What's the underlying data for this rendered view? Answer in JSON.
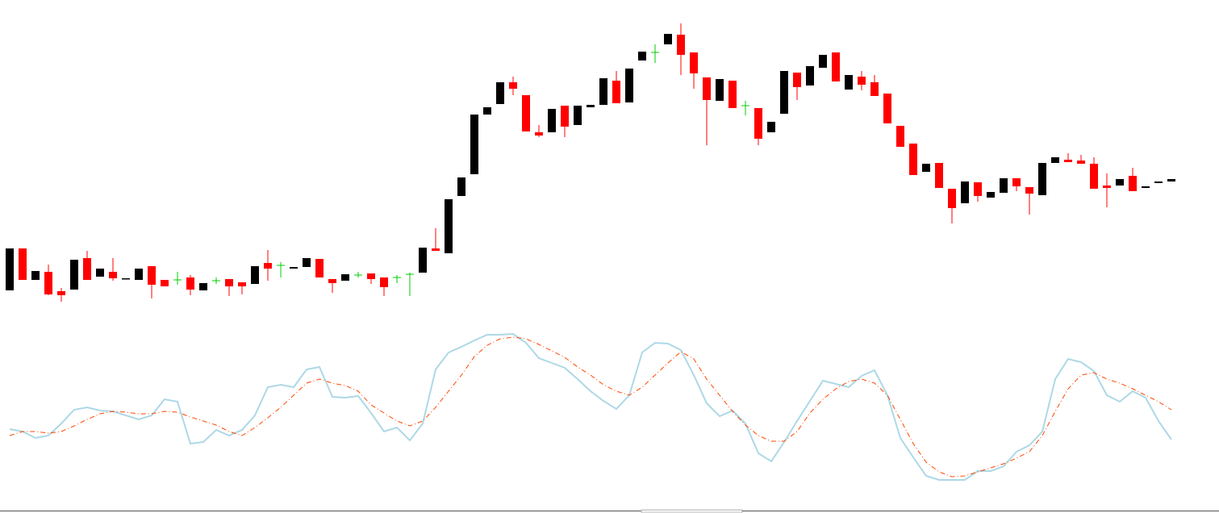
{
  "chart_data": [
    {
      "type": "candlestick",
      "up_color": "#000000",
      "down_color": "#ff0000",
      "doji_color": "#00cc00",
      "ylim": [
        0,
        380
      ],
      "open": [
        40,
        92,
        53,
        63,
        39,
        41,
        80,
        57,
        63,
        54,
        53,
        70,
        53,
        53,
        56,
        40,
        52,
        54,
        50,
        48,
        74,
        71,
        67,
        69,
        79,
        54,
        52,
        59,
        61,
        56,
        56,
        60,
        62,
        92,
        86,
        157,
        184,
        258,
        271,
        298,
        282,
        236,
        236,
        269,
        245,
        267,
        270,
        300,
        273,
        325,
        335,
        345,
        357,
        335,
        304,
        275,
        300,
        269,
        266,
        236,
        259,
        310,
        294,
        316,
        335,
        289,
        305,
        298,
        284,
        244,
        222,
        187,
        198,
        166,
        148,
        174,
        155,
        161,
        179,
        168,
        158,
        198,
        202,
        201,
        197,
        170,
        170,
        182,
        167,
        173,
        175
      ],
      "high": [
        92,
        92,
        64,
        72,
        43,
        78,
        89,
        67,
        80,
        55,
        67,
        70,
        53,
        63,
        59,
        49,
        56,
        54,
        50,
        70,
        90,
        75,
        69,
        80,
        79,
        54,
        60,
        63,
        61,
        56,
        59,
        62,
        93,
        117,
        153,
        180,
        258,
        267,
        298,
        305,
        282,
        245,
        265,
        269,
        269,
        270,
        303,
        312,
        315,
        336,
        345,
        358,
        371,
        335,
        304,
        302,
        300,
        275,
        266,
        249,
        312,
        310,
        318,
        332,
        335,
        307,
        312,
        307,
        284,
        244,
        222,
        197,
        198,
        166,
        175,
        174,
        162,
        179,
        179,
        168,
        198,
        205,
        210,
        208,
        205,
        185,
        178,
        192,
        169,
        175,
        178
      ],
      "low": [
        40,
        53,
        53,
        34,
        26,
        41,
        53,
        57,
        52,
        54,
        53,
        30,
        45,
        47,
        34,
        40,
        48,
        33,
        35,
        48,
        52,
        56,
        67,
        69,
        56,
        37,
        52,
        56,
        48,
        33,
        49,
        33,
        62,
        89,
        86,
        157,
        184,
        258,
        271,
        282,
        237,
        230,
        236,
        230,
        245,
        267,
        270,
        272,
        273,
        325,
        322,
        345,
        307,
        290,
        220,
        275,
        266,
        257,
        220,
        236,
        259,
        276,
        294,
        316,
        299,
        289,
        288,
        281,
        247,
        218,
        183,
        187,
        167,
        123,
        148,
        150,
        155,
        161,
        163,
        134,
        158,
        198,
        199,
        197,
        166,
        143,
        170,
        163,
        167,
        173,
        175
      ],
      "close": [
        92,
        53,
        64,
        35,
        34,
        78,
        53,
        67,
        55,
        55,
        67,
        47,
        45,
        53,
        41,
        49,
        52,
        45,
        45,
        70,
        67,
        71,
        69,
        80,
        56,
        49,
        60,
        59,
        54,
        44,
        56,
        60,
        93,
        89,
        153,
        180,
        258,
        267,
        298,
        290,
        237,
        232,
        265,
        243,
        269,
        270,
        303,
        272,
        315,
        336,
        335,
        358,
        332,
        309,
        276,
        302,
        266,
        269,
        228,
        249,
        312,
        292,
        318,
        332,
        299,
        307,
        295,
        281,
        247,
        218,
        183,
        197,
        167,
        142,
        175,
        157,
        162,
        179,
        169,
        160,
        198,
        205,
        199,
        197,
        166,
        167,
        178,
        163,
        169,
        175,
        178
      ]
    },
    {
      "type": "line",
      "ylim": [
        0,
        200
      ],
      "series": [
        {
          "color": "#add8e6",
          "style": "solid",
          "values": [
            68,
            65,
            57,
            60,
            75,
            92,
            95,
            91,
            90,
            85,
            80,
            85,
            105,
            102,
            50,
            52,
            67,
            60,
            67,
            85,
            120,
            123,
            120,
            142,
            145,
            108,
            107,
            109,
            88,
            65,
            70,
            54,
            75,
            142,
            163,
            170,
            178,
            185,
            185,
            186,
            175,
            156,
            150,
            144,
            130,
            115,
            103,
            93,
            110,
            163,
            175,
            174,
            166,
            135,
            100,
            84,
            91,
            75,
            38,
            28,
            52,
            78,
            103,
            128,
            124,
            120,
            134,
            141,
            110,
            57,
            33,
            10,
            5,
            5,
            5,
            16,
            16,
            22,
            40,
            48,
            65,
            130,
            155,
            151,
            140,
            110,
            102,
            115,
            107,
            78,
            55
          ]
        },
        {
          "color": "#ff4500",
          "style": "dashdot",
          "values": [
            60,
            65,
            65,
            63,
            65,
            72,
            80,
            87,
            90,
            89,
            87,
            87,
            90,
            89,
            83,
            78,
            73,
            65,
            60,
            70,
            82,
            95,
            110,
            125,
            130,
            125,
            122,
            115,
            98,
            88,
            78,
            72,
            78,
            95,
            115,
            135,
            158,
            172,
            180,
            182,
            180,
            173,
            165,
            157,
            145,
            135,
            123,
            115,
            110,
            120,
            135,
            150,
            164,
            155,
            130,
            110,
            90,
            73,
            60,
            53,
            53,
            65,
            88,
            105,
            118,
            127,
            130,
            125,
            110,
            80,
            50,
            27,
            15,
            9,
            10,
            15,
            20,
            25,
            32,
            40,
            60,
            90,
            118,
            135,
            138,
            130,
            125,
            118,
            110,
            102,
            92
          ]
        }
      ]
    }
  ]
}
